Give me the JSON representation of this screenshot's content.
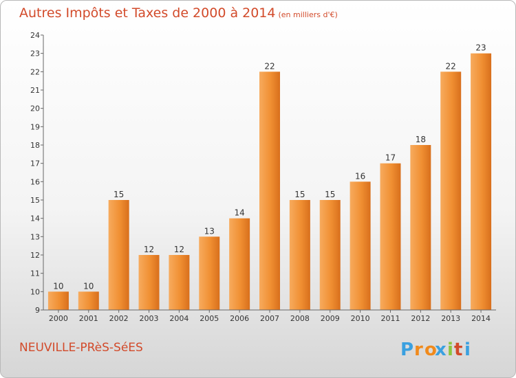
{
  "chart_data": {
    "type": "bar",
    "title": "Autres Impôts et Taxes de 2000 à 2014",
    "subtitle": "(en milliers d'€)",
    "categories": [
      "2000",
      "2001",
      "2002",
      "2003",
      "2004",
      "2005",
      "2006",
      "2007",
      "2008",
      "2009",
      "2010",
      "2011",
      "2012",
      "2013",
      "2014"
    ],
    "values": [
      10,
      10,
      15,
      12,
      12,
      13,
      14,
      22,
      15,
      15,
      16,
      17,
      18,
      22,
      23
    ],
    "ylim": [
      9,
      24
    ],
    "yticks": [
      9,
      10,
      11,
      12,
      13,
      14,
      15,
      16,
      17,
      18,
      19,
      20,
      21,
      22,
      23,
      24
    ],
    "xlabel": "",
    "ylabel": "",
    "grid": false,
    "bar_color": "#f08f32"
  },
  "footer": {
    "town": "NEUVILLE-PRèS-SéES",
    "logo": "Proxiti"
  },
  "colors": {
    "title": "#d24a2a",
    "logo_letters": [
      "#3aa0e0",
      "#f08a1c",
      "#f08a1c",
      "#3aa0e0",
      "#8cc63e",
      "#d24a2a",
      "#3aa0e0"
    ]
  }
}
